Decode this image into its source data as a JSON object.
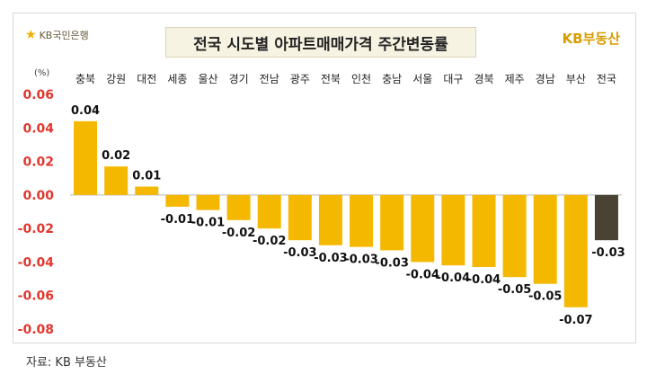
{
  "header": {
    "bank_logo_text": "KB국민은행",
    "title": "전국 시도별 아파트매매가격 주간변동률",
    "brand_logo": "KB부동산"
  },
  "footer": {
    "source": "자료: KB 부동산"
  },
  "colors": {
    "bar": "#f5b800",
    "highlight_bar": "#4a4233",
    "axis_label": "#e2362d"
  },
  "chart_data": {
    "type": "bar",
    "unit_label": "(%)",
    "categories": [
      "충북",
      "강원",
      "대전",
      "세종",
      "울산",
      "경기",
      "전남",
      "광주",
      "전북",
      "인천",
      "충남",
      "서울",
      "대구",
      "경북",
      "제주",
      "경남",
      "부산",
      "전국"
    ],
    "values": [
      0.044,
      0.017,
      0.005,
      -0.007,
      -0.009,
      -0.015,
      -0.02,
      -0.027,
      -0.03,
      -0.031,
      -0.033,
      -0.04,
      -0.042,
      -0.043,
      -0.049,
      -0.053,
      -0.067,
      -0.027
    ],
    "data_labels": [
      "0.04",
      "0.02",
      "0.01",
      "-0.01",
      "-0.01",
      "-0.02",
      "-0.02",
      "-0.03",
      "-0.03",
      "-0.03",
      "-0.03",
      "-0.04",
      "-0.04",
      "-0.04",
      "-0.05",
      "-0.05",
      "-0.07",
      "-0.03"
    ],
    "highlight_category": "전국",
    "ylim": [
      -0.08,
      0.06
    ],
    "yticks": [
      "0.06",
      "0.04",
      "0.02",
      "0.00",
      "-0.02",
      "-0.04",
      "-0.06",
      "-0.08"
    ],
    "ytick_values": [
      0.06,
      0.04,
      0.02,
      0.0,
      -0.02,
      -0.04,
      -0.06,
      -0.08
    ],
    "grid": false
  }
}
